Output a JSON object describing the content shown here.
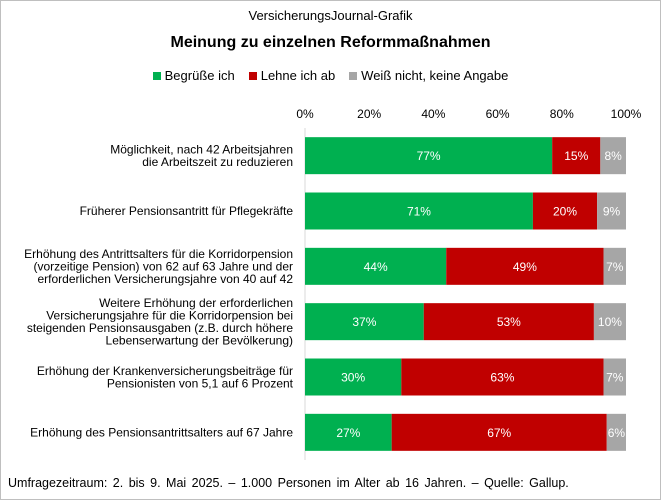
{
  "header": {
    "source": "VersicherungsJournal-Grafik",
    "title": "Meinung zu einzelnen Reformmaßnahmen"
  },
  "legend": [
    {
      "label": "Begrüße ich",
      "color": "#00b050"
    },
    {
      "label": "Lehne ich ab",
      "color": "#c00000"
    },
    {
      "label": "Weiß nicht, keine Angabe",
      "color": "#a6a6a6"
    }
  ],
  "footer": "Umfragezeitraum:  2. bis 9. Mai 2025. – 1.000 Personen  im Alter ab 16 Jahren.  – Quelle: Gallup.",
  "chart_data": {
    "type": "bar",
    "orientation": "horizontal",
    "stacked": true,
    "title": "Meinung zu einzelnen Reformmaßnahmen",
    "xlim": [
      0,
      100
    ],
    "xticks": [
      "0%",
      "20%",
      "40%",
      "60%",
      "80%",
      "100%"
    ],
    "xtick_values": [
      0,
      20,
      40,
      60,
      80,
      100
    ],
    "xaxis_position": "top",
    "categories": [
      [
        "Möglichkeit, nach 42 Arbeitsjahren",
        "die Arbeitszeit zu reduzieren"
      ],
      [
        "Früherer Pensionsantritt für Pflegekräfte"
      ],
      [
        "Erhöhung des Antrittsalters für die Korridorpension",
        "(vorzeitige Pension) von 62 auf 63 Jahre und der",
        "erforderlichen Versicherungsjahre von 40 auf 42"
      ],
      [
        "Weitere Erhöhung der erforderlichen",
        "Versicherungsjahre für die Korridorpension bei",
        "steigenden Pensionsausgaben (z.B. durch höhere",
        "Lebenserwartung der Bevölkerung)"
      ],
      [
        "Erhöhung der Krankenversicherungsbeiträge für",
        "Pensionisten von 5,1 auf 6 Prozent"
      ],
      [
        "Erhöhung des Pensionsantrittsalters auf 67 Jahre"
      ]
    ],
    "series": [
      {
        "name": "Begrüße ich",
        "color": "#00b050",
        "values": [
          77,
          71,
          44,
          37,
          30,
          27
        ],
        "labels": [
          "77%",
          "71%",
          "44%",
          "37%",
          "30%",
          "27%"
        ]
      },
      {
        "name": "Lehne ich ab",
        "color": "#c00000",
        "values": [
          15,
          20,
          49,
          53,
          63,
          67
        ],
        "labels": [
          "15%",
          "20%",
          "49%",
          "53%",
          "63%",
          "67%"
        ]
      },
      {
        "name": "Weiß nicht, keine Angabe",
        "color": "#a6a6a6",
        "values": [
          8,
          9,
          7,
          10,
          7,
          6
        ],
        "labels": [
          "8%",
          "9%",
          "7%",
          "10%",
          "7%",
          "6%"
        ]
      }
    ]
  }
}
